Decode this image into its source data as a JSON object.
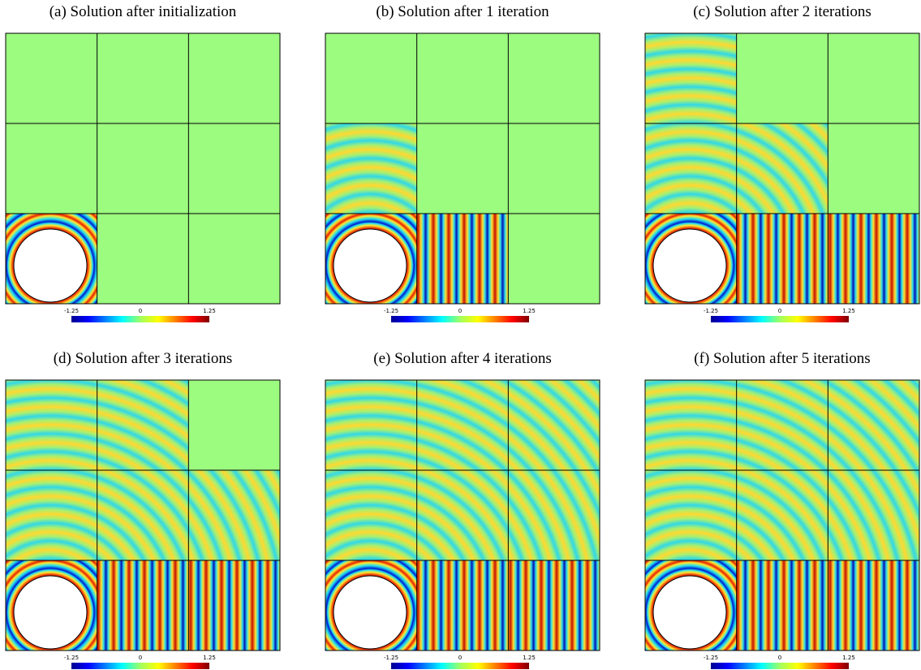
{
  "panels": [
    {
      "caption": "(a) Solution after initialization"
    },
    {
      "caption": "(b) Solution after 1 iteration"
    },
    {
      "caption": "(c) Solution after 2 iterations"
    },
    {
      "caption": "(d) Solution after 3 iterations"
    },
    {
      "caption": "(e) Solution after 4 iterations"
    },
    {
      "caption": "(f) Solution after 5 iterations"
    }
  ],
  "colorbar": {
    "ticks": [
      "-1.25",
      "0",
      "1.25"
    ]
  }
}
